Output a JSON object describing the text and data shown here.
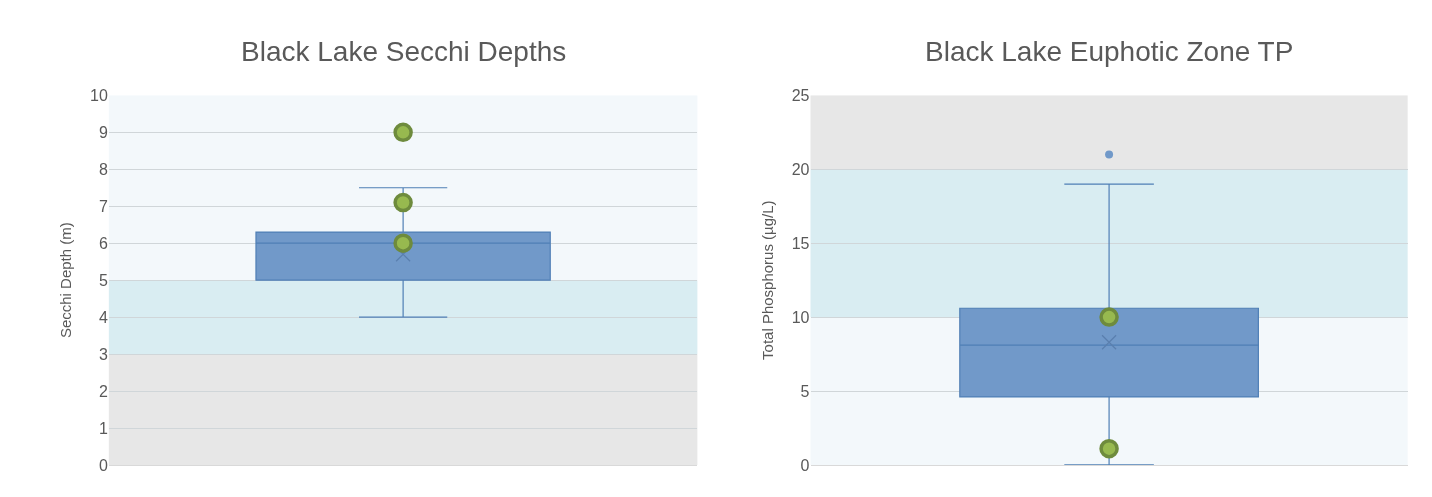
{
  "chart_data": [
    {
      "type": "box",
      "title": "Black Lake Secchi Depths",
      "ylabel": "Secchi Depth (m)",
      "categories": [
        null
      ],
      "series": [
        {
          "color": "#7199c9",
          "boxes": [
            {
              "low": 4,
              "q1": 5,
              "median": 6,
              "q3": 6.3,
              "high": 7.5,
              "mean": 5.7
            }
          ]
        },
        {
          "type": "scatter",
          "color": "#6e8b3d",
          "x": [
            null,
            null,
            null
          ],
          "values": [
            9,
            7.1,
            6
          ]
        }
      ],
      "ylim": [
        0,
        10
      ],
      "yticks": [
        0,
        1,
        2,
        3,
        4,
        5,
        6,
        7,
        8,
        9,
        10
      ],
      "grid": "y",
      "tick_labels": "y",
      "bands": [
        {
          "axis": "y",
          "from": 0,
          "to": 3,
          "color": "#e7e7e7"
        },
        {
          "axis": "y",
          "from": 3,
          "to": 5,
          "color": "#d9edf2"
        },
        {
          "axis": "y",
          "from": 5,
          "to": 10,
          "color": "#f3f8fb"
        }
      ]
    },
    {
      "type": "box",
      "title": "Black Lake Euphotic Zone TP",
      "ylabel": "Total Phosphorus (µg/L)",
      "categories": [
        null
      ],
      "series": [
        {
          "color": "#7199c9",
          "boxes": [
            {
              "low": 0,
              "q1": 4.6,
              "median": 8.1,
              "q3": 10.6,
              "high": 19,
              "mean": 8.3,
              "outliers": [
                21
              ]
            }
          ]
        },
        {
          "type": "scatter",
          "color": "#6e8b3d",
          "x": [
            null,
            null
          ],
          "values": [
            10,
            1.1
          ]
        }
      ],
      "ylim": [
        0,
        25
      ],
      "yticks": [
        0,
        5,
        10,
        15,
        20,
        25
      ],
      "grid": "y",
      "tick_labels": "y",
      "bands": [
        {
          "axis": "y",
          "from": 0,
          "to": 10,
          "color": "#f3f8fb"
        },
        {
          "axis": "y",
          "from": 10,
          "to": 20,
          "color": "#d9edf2"
        },
        {
          "axis": "y",
          "from": 20,
          "to": 25,
          "color": "#e7e7e7"
        }
      ]
    }
  ]
}
